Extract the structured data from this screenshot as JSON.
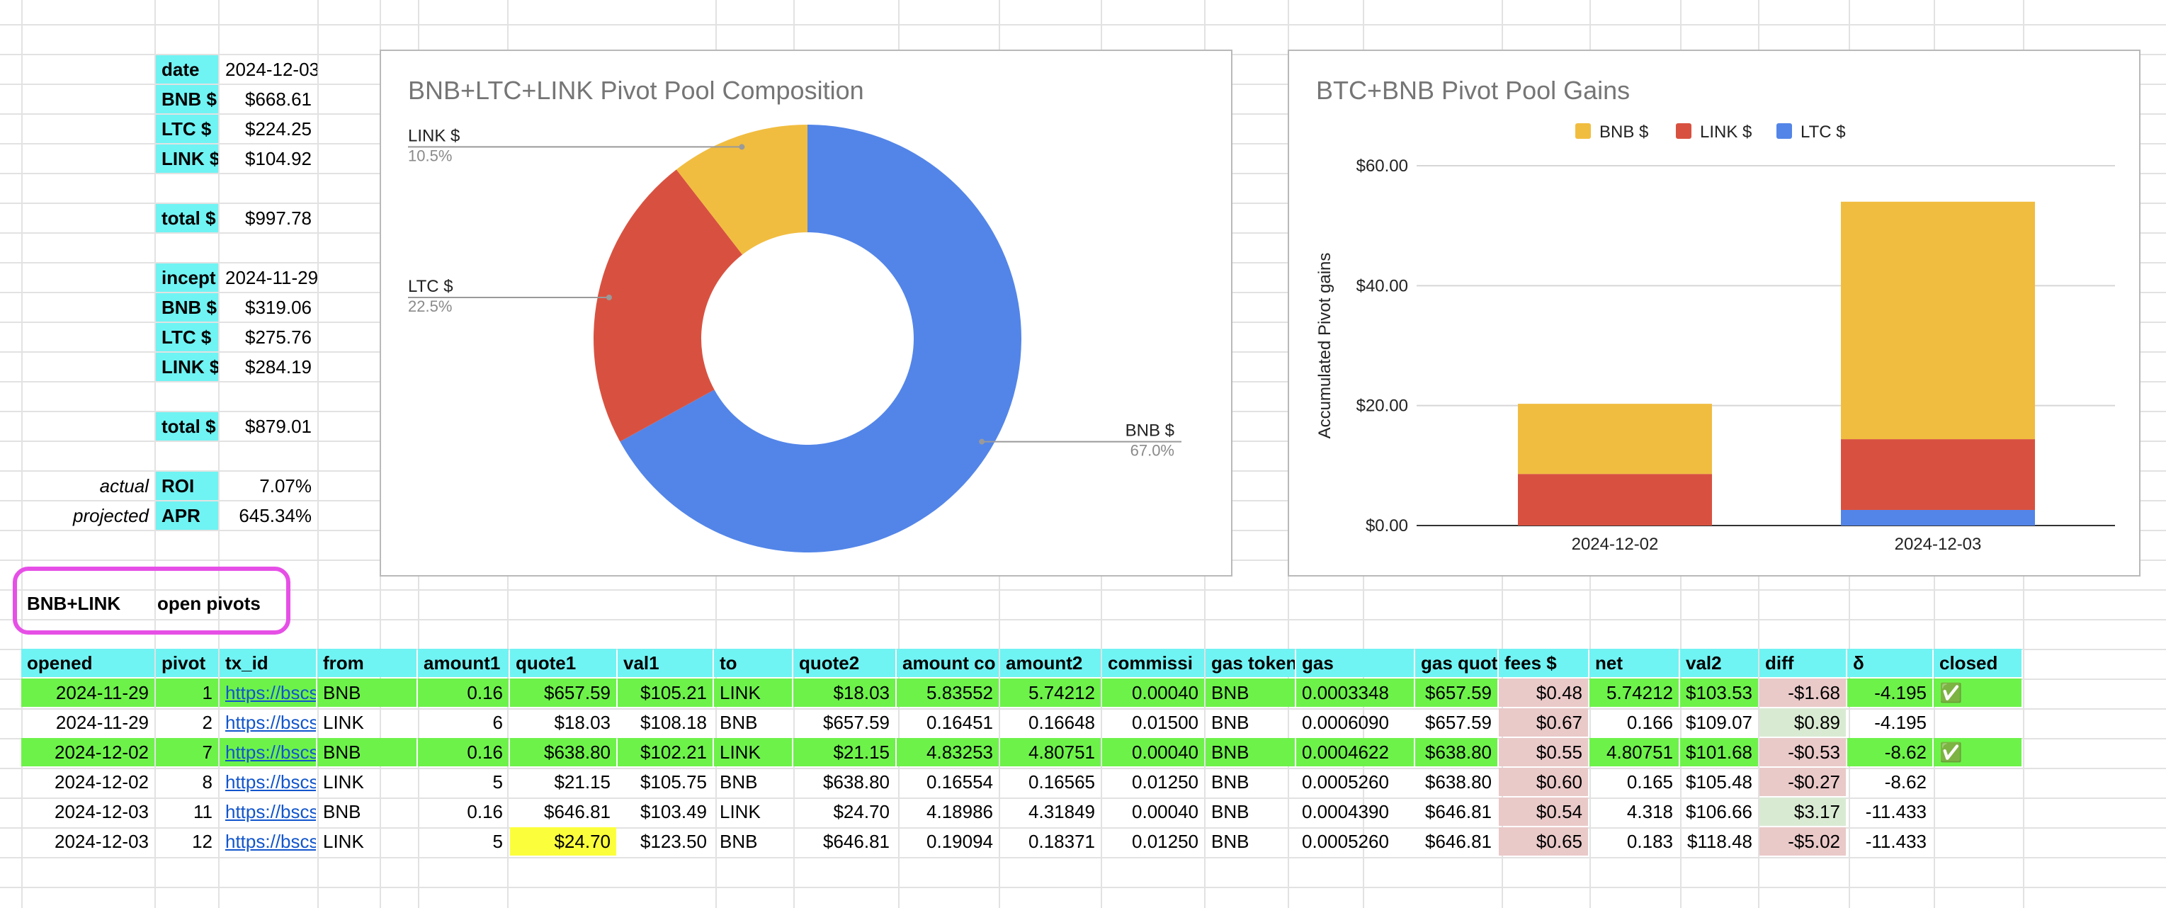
{
  "summary": {
    "date_label": "date",
    "date_value": "2024-12-03",
    "bnb_label": "BNB $",
    "bnb_value": "$668.61",
    "ltc_label": "LTC $",
    "ltc_value": "$224.25",
    "link_label": "LINK $",
    "link_value": "$104.92",
    "total_label": "total $",
    "total_value": "$997.78",
    "incept_label": "incept",
    "incept_value": "2024-11-29",
    "bnb2_label": "BNB $",
    "bnb2_value": "$319.06",
    "ltc2_label": "LTC $",
    "ltc2_value": "$275.76",
    "link2_label": "LINK $",
    "link2_value": "$284.19",
    "total2_label": "total $",
    "total2_value": "$879.01",
    "actual_label": "actual",
    "roi_label": "ROI",
    "roi_value": "7.07%",
    "projected_label": "projected",
    "apr_label": "APR",
    "apr_value": "645.34%"
  },
  "section": {
    "pair": "BNB+LINK",
    "title": "open pivots"
  },
  "table": {
    "headers": [
      "opened",
      "pivot",
      "tx_id",
      "from",
      "amount1",
      "quote1",
      "val1",
      "to",
      "quote2",
      "amount co",
      "amount2",
      "commissi",
      "gas token",
      "gas",
      "gas quote",
      "fees $",
      "net",
      "val2",
      "diff",
      "δ",
      "closed"
    ],
    "rows": [
      [
        "2024-11-29",
        "1",
        "https://bscs",
        "BNB",
        "0.16",
        "$657.59",
        "$105.21",
        "LINK",
        "$18.03",
        "5.83552",
        "5.74212",
        "0.00040",
        "BNB",
        "0.0003348",
        "$657.59",
        "$0.48",
        "5.74212",
        "$103.53",
        "-$1.68",
        "-4.195",
        "✅"
      ],
      [
        "2024-11-29",
        "2",
        "https://bscs",
        "LINK",
        "6",
        "$18.03",
        "$108.18",
        "BNB",
        "$657.59",
        "0.16451",
        "0.16648",
        "0.01500",
        "BNB",
        "0.0006090",
        "$657.59",
        "$0.67",
        "0.166",
        "$109.07",
        "$0.89",
        "-4.195",
        ""
      ],
      [
        "2024-12-02",
        "7",
        "https://bscs",
        "BNB",
        "0.16",
        "$638.80",
        "$102.21",
        "LINK",
        "$21.15",
        "4.83253",
        "4.80751",
        "0.00040",
        "BNB",
        "0.0004622",
        "$638.80",
        "$0.55",
        "4.80751",
        "$101.68",
        "-$0.53",
        "-8.62",
        "✅"
      ],
      [
        "2024-12-02",
        "8",
        "https://bscs",
        "LINK",
        "5",
        "$21.15",
        "$105.75",
        "BNB",
        "$638.80",
        "0.16554",
        "0.16565",
        "0.01250",
        "BNB",
        "0.0005260",
        "$638.80",
        "$0.60",
        "0.165",
        "$105.48",
        "-$0.27",
        "-8.62",
        ""
      ],
      [
        "2024-12-03",
        "11",
        "https://bscs",
        "BNB",
        "0.16",
        "$646.81",
        "$103.49",
        "LINK",
        "$24.70",
        "4.18986",
        "4.31849",
        "0.00040",
        "BNB",
        "0.0004390",
        "$646.81",
        "$0.54",
        "4.318",
        "$106.66",
        "$3.17",
        "-11.433",
        ""
      ],
      [
        "2024-12-03",
        "12",
        "https://bscs",
        "LINK",
        "5",
        "$24.70",
        "$123.50",
        "BNB",
        "$646.81",
        "0.19094",
        "0.18371",
        "0.01250",
        "BNB",
        "0.0005260",
        "$646.81",
        "$0.65",
        "0.183",
        "$118.48",
        "-$5.02",
        "-11.433",
        ""
      ]
    ]
  },
  "chart_data": [
    {
      "type": "pie",
      "title": "BNB+LTC+LINK Pivot Pool Composition",
      "donut": true,
      "categories": [
        "BNB $",
        "LTC $",
        "LINK $"
      ],
      "values": [
        67.0,
        22.5,
        10.5
      ],
      "value_labels": [
        "67.0%",
        "22.5%",
        "10.5%"
      ],
      "colors": [
        "#5385e8",
        "#d85140",
        "#f1bd40"
      ]
    },
    {
      "type": "bar",
      "stacked": true,
      "title": "BTC+BNB Pivot Pool Gains",
      "ylabel": "Accumulated Pivot gains",
      "xlabel": "",
      "categories": [
        "2024-12-02",
        "2024-12-03"
      ],
      "series": [
        {
          "name": "LTC $",
          "values": [
            0.0,
            2.6
          ],
          "color": "#5385e8"
        },
        {
          "name": "LINK $",
          "values": [
            8.6,
            11.8
          ],
          "color": "#d85140"
        },
        {
          "name": "BNB $",
          "values": [
            11.7,
            39.6
          ],
          "color": "#f1bd40"
        }
      ],
      "legend_order": [
        "BNB $",
        "LINK $",
        "LTC $"
      ],
      "legend": "top",
      "ylim": [
        0,
        60
      ],
      "yticks": [
        "$0.00",
        "$20.00",
        "$40.00",
        "$60.00"
      ],
      "ytick_values": [
        0,
        20,
        40,
        60
      ]
    }
  ]
}
